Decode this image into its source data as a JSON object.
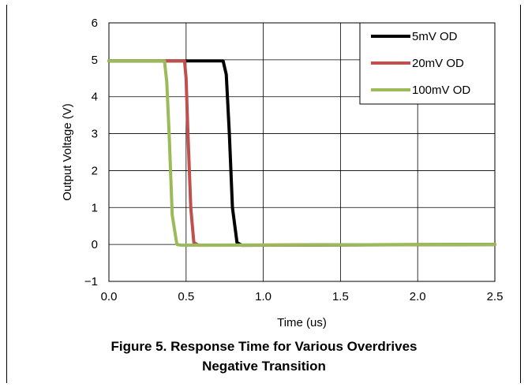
{
  "chart_data": {
    "type": "line",
    "title": "",
    "xlabel": "Time (us)",
    "ylabel": "Output Voltage (V)",
    "xlim": [
      0.0,
      2.5
    ],
    "ylim": [
      -1,
      6
    ],
    "xticks": [
      "0.0",
      "0.5",
      "1.0",
      "1.5",
      "2.0",
      "2.5"
    ],
    "xtick_values": [
      0.0,
      0.5,
      1.0,
      1.5,
      2.0,
      2.5
    ],
    "yticks": [
      "−1",
      "0",
      "1",
      "2",
      "3",
      "4",
      "5",
      "6"
    ],
    "ytick_values": [
      -1,
      0,
      1,
      2,
      3,
      4,
      5,
      6
    ],
    "grid": true,
    "legend_position": "top-right",
    "series": [
      {
        "name": "5mV OD",
        "color": "#000000",
        "x": [
          0.0,
          0.74,
          0.76,
          0.78,
          0.8,
          0.83,
          0.86,
          2.5
        ],
        "y": [
          4.97,
          4.97,
          4.6,
          3.0,
          1.0,
          0.05,
          -0.02,
          0.0
        ]
      },
      {
        "name": "20mV OD",
        "color": "#c0504d",
        "x": [
          0.0,
          0.49,
          0.5,
          0.51,
          0.53,
          0.55,
          0.58,
          2.5
        ],
        "y": [
          4.97,
          4.97,
          4.5,
          3.2,
          1.0,
          0.05,
          -0.02,
          0.0
        ]
      },
      {
        "name": "100mV OD",
        "color": "#9bbb59",
        "x": [
          0.0,
          0.36,
          0.375,
          0.39,
          0.41,
          0.44,
          0.47,
          2.5
        ],
        "y": [
          4.97,
          4.97,
          4.4,
          3.0,
          0.8,
          0.0,
          -0.02,
          0.0
        ]
      }
    ]
  },
  "caption": {
    "line1": "Figure 5. Response Time for Various Overdrives",
    "line2": "Negative Transition"
  }
}
